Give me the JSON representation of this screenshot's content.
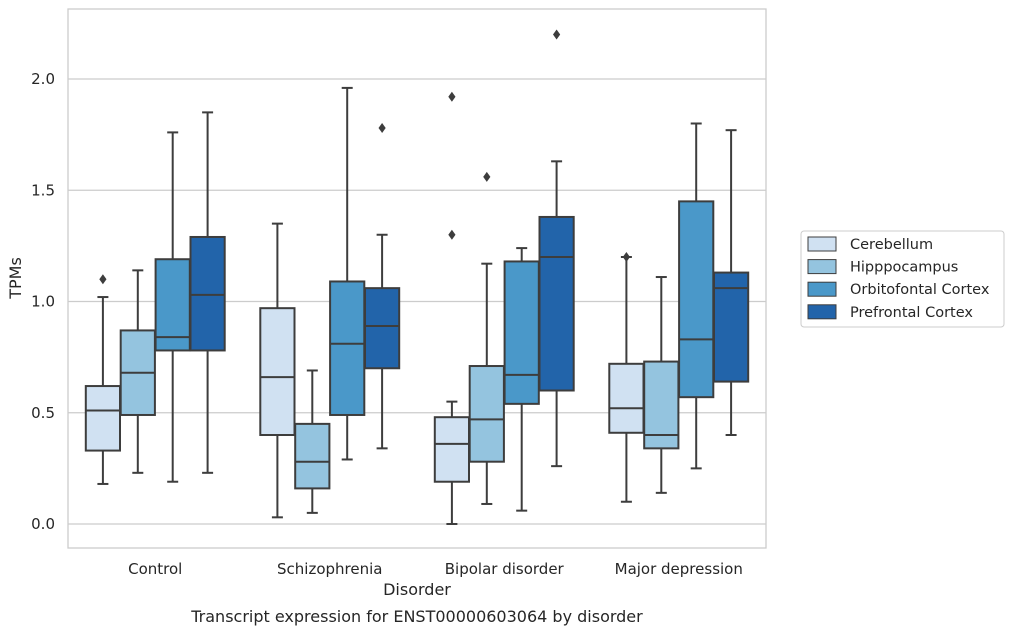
{
  "chart_data": {
    "type": "box",
    "title": "",
    "caption": "Transcript expression for ENST00000603064 by disorder",
    "xlabel": "Disorder",
    "ylabel": "TPMs",
    "ylim": [
      -0.1,
      2.32
    ],
    "yticks": [
      "0.0",
      "0.5",
      "1.0",
      "1.5",
      "2.0"
    ],
    "grid": true,
    "legend_position": "right",
    "categories": [
      "Control",
      "Schizophrenia",
      "Bipolar disorder",
      "Major depression"
    ],
    "series": [
      {
        "name": "Cerebellum",
        "color": "#d0e1f2",
        "boxes": [
          {
            "min": 0.18,
            "q1": 0.33,
            "median": 0.51,
            "q3": 0.62,
            "max": 1.02,
            "outliers": [
              1.1
            ]
          },
          {
            "min": 0.03,
            "q1": 0.4,
            "median": 0.66,
            "q3": 0.97,
            "max": 1.35,
            "outliers": []
          },
          {
            "min": 0.0,
            "q1": 0.19,
            "median": 0.36,
            "q3": 0.48,
            "max": 0.55,
            "outliers": [
              1.3,
              1.92
            ]
          },
          {
            "min": 0.1,
            "q1": 0.41,
            "median": 0.52,
            "q3": 0.72,
            "max": 1.2,
            "outliers": [
              1.2
            ]
          }
        ]
      },
      {
        "name": "Hipppocampus",
        "color": "#94c4df",
        "boxes": [
          {
            "min": 0.23,
            "q1": 0.49,
            "median": 0.68,
            "q3": 0.87,
            "max": 1.14,
            "outliers": []
          },
          {
            "min": 0.05,
            "q1": 0.16,
            "median": 0.28,
            "q3": 0.45,
            "max": 0.69,
            "outliers": []
          },
          {
            "min": 0.09,
            "q1": 0.28,
            "median": 0.47,
            "q3": 0.71,
            "max": 1.17,
            "outliers": [
              1.56
            ]
          },
          {
            "min": 0.14,
            "q1": 0.34,
            "median": 0.4,
            "q3": 0.73,
            "max": 1.11,
            "outliers": []
          }
        ]
      },
      {
        "name": "Orbitofontal Cortex",
        "color": "#4a98c9",
        "boxes": [
          {
            "min": 0.19,
            "q1": 0.78,
            "median": 0.84,
            "q3": 1.19,
            "max": 1.76,
            "outliers": []
          },
          {
            "min": 0.29,
            "q1": 0.49,
            "median": 0.81,
            "q3": 1.09,
            "max": 1.96,
            "outliers": []
          },
          {
            "min": 0.06,
            "q1": 0.54,
            "median": 0.67,
            "q3": 1.18,
            "max": 1.24,
            "outliers": []
          },
          {
            "min": 0.25,
            "q1": 0.57,
            "median": 0.83,
            "q3": 1.45,
            "max": 1.8,
            "outliers": []
          }
        ]
      },
      {
        "name": "Prefrontal Cortex",
        "color": "#2264aa",
        "boxes": [
          {
            "min": 0.23,
            "q1": 0.78,
            "median": 1.03,
            "q3": 1.29,
            "max": 1.85,
            "outliers": []
          },
          {
            "min": 0.34,
            "q1": 0.7,
            "median": 0.89,
            "q3": 1.06,
            "max": 1.3,
            "outliers": [
              1.78
            ]
          },
          {
            "min": 0.26,
            "q1": 0.6,
            "median": 1.2,
            "q3": 1.38,
            "max": 1.63,
            "outliers": [
              2.2
            ]
          },
          {
            "min": 0.4,
            "q1": 0.64,
            "median": 1.06,
            "q3": 1.13,
            "max": 1.77,
            "outliers": []
          }
        ]
      }
    ]
  }
}
